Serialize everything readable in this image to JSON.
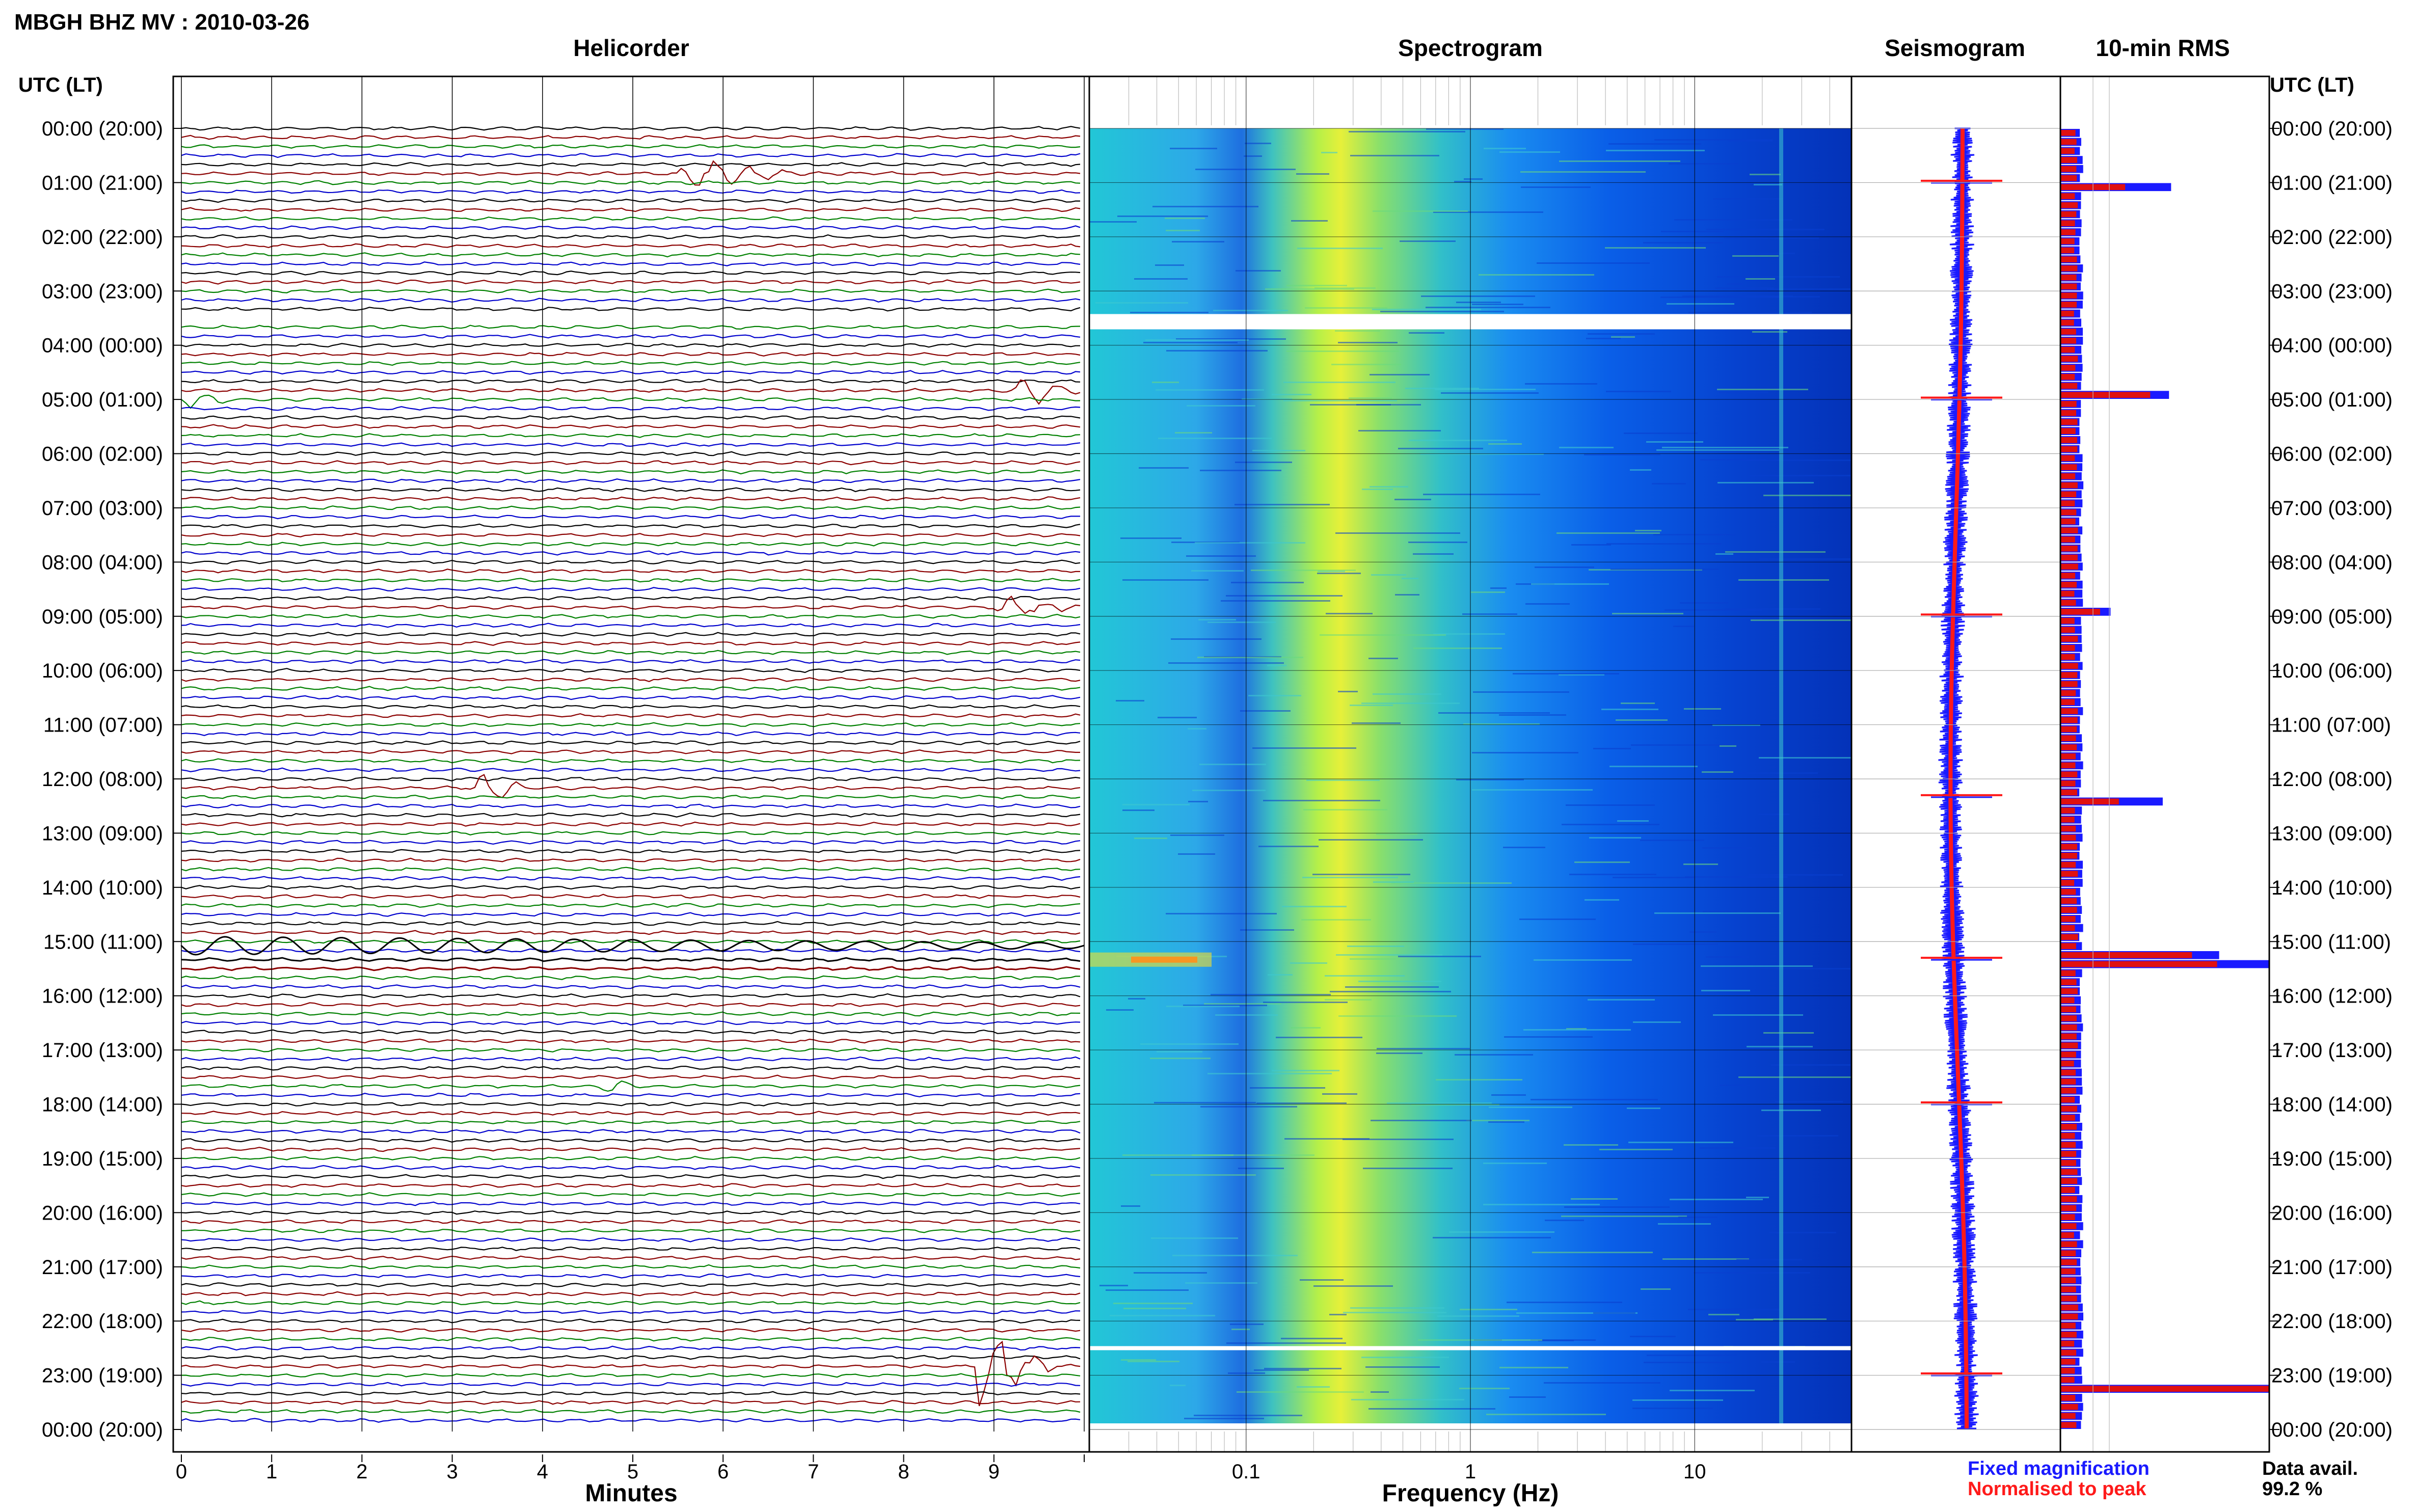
{
  "title": "MBGH BHZ MV : 2010-03-26",
  "panels": {
    "helicorder": "Helicorder",
    "spectrogram": "Spectrogram",
    "seismogram": "Seismogram",
    "rms": "10-min RMS"
  },
  "axis": {
    "left_time_label": "UTC (LT)",
    "right_time_label": "UTC (LT)",
    "minutes_label": "Minutes",
    "frequency_label": "Frequency (Hz)"
  },
  "time_labels": [
    "00:00 (20:00)",
    "01:00 (21:00)",
    "02:00 (22:00)",
    "03:00 (23:00)",
    "04:00 (00:00)",
    "05:00 (01:00)",
    "06:00 (02:00)",
    "07:00 (03:00)",
    "08:00 (04:00)",
    "09:00 (05:00)",
    "10:00 (06:00)",
    "11:00 (07:00)",
    "12:00 (08:00)",
    "13:00 (09:00)",
    "14:00 (10:00)",
    "15:00 (11:00)",
    "16:00 (12:00)",
    "17:00 (13:00)",
    "18:00 (14:00)",
    "19:00 (15:00)",
    "20:00 (16:00)",
    "21:00 (17:00)",
    "22:00 (18:00)",
    "23:00 (19:00)",
    "00:00 (20:00)"
  ],
  "minute_ticks": [
    "0",
    "1",
    "2",
    "3",
    "4",
    "5",
    "6",
    "7",
    "8",
    "9"
  ],
  "freq_ticks": [
    "0.1",
    "1",
    "10"
  ],
  "legend": {
    "fixed": "Fixed magnification",
    "normalised": "Normalised to peak",
    "fixed_color": "#1a1aff",
    "normalised_color": "#ff1a1a"
  },
  "data_avail": {
    "label": "Data avail.",
    "value": "99.2 %"
  },
  "colors": {
    "trace_cycle": [
      "#000000",
      "#8b0000",
      "#008000",
      "#0000cd"
    ]
  },
  "chart_data": [
    {
      "type": "helicorder",
      "title": "Helicorder",
      "xlabel": "Minutes",
      "xlim": [
        0,
        10
      ],
      "rows_per_hour": 6,
      "hours": 24,
      "events": [
        {
          "t": "00:50",
          "minute": 5.5,
          "amp": 0.9,
          "dur": 1.5
        },
        {
          "t": "04:50",
          "minute": 9.2,
          "amp": 1.0,
          "dur": 1.2
        },
        {
          "t": "05:00",
          "minute": 0.0,
          "amp": 0.7,
          "dur": 0.6
        },
        {
          "t": "08:50",
          "minute": 9.0,
          "amp": 0.8,
          "dur": 1.0
        },
        {
          "t": "12:10",
          "minute": 3.3,
          "amp": 1.0,
          "dur": 0.6
        },
        {
          "t": "17:40",
          "minute": 4.6,
          "amp": 0.8,
          "dur": 0.5
        },
        {
          "t": "22:50",
          "minute": 8.8,
          "amp": 3.0,
          "dur": 0.9
        }
      ]
    },
    {
      "type": "heatmap",
      "title": "Spectrogram",
      "xlabel": "Frequency (Hz)",
      "xscale": "log",
      "xlim": [
        0.02,
        50
      ],
      "ylim": [
        "00:00",
        "00:00"
      ],
      "gaps": [
        "03:30",
        "22:30"
      ]
    },
    {
      "type": "line",
      "title": "Seismogram",
      "spikes": [
        "00:58",
        "04:58",
        "08:58",
        "12:18",
        "15:18",
        "17:58",
        "22:58"
      ]
    },
    {
      "type": "bar",
      "title": "10-min RMS",
      "series": [
        {
          "name": "Fixed magnification"
        },
        {
          "name": "Normalised to peak"
        }
      ],
      "peaks": [
        {
          "t": "01:00",
          "fixed": 0.53,
          "normalised": 0.31
        },
        {
          "t": "04:50",
          "fixed": 0.52,
          "normalised": 0.43
        },
        {
          "t": "08:50",
          "fixed": 0.24,
          "normalised": 0.19
        },
        {
          "t": "12:20",
          "fixed": 0.49,
          "normalised": 0.28
        },
        {
          "t": "15:10",
          "fixed": 0.76,
          "normalised": 0.63
        },
        {
          "t": "15:20",
          "fixed": 1.0,
          "normalised": 0.75
        },
        {
          "t": "23:10",
          "fixed": 1.0,
          "normalised": 1.0
        }
      ]
    }
  ]
}
